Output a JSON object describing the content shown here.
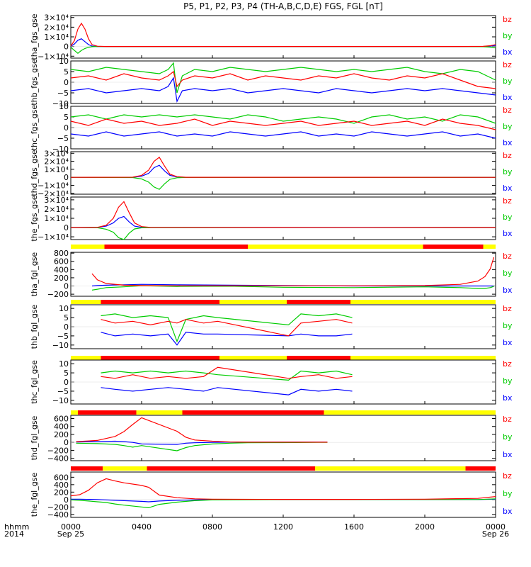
{
  "title": "P5, P1, P2, P3, P4 (TH-A,B,C,D,E) FGS, FGL [nT]",
  "x_axis": {
    "left_label_1": "hhmm",
    "left_label_2": "2014",
    "tick_labels": [
      "0000",
      "0400",
      "0800",
      "1200",
      "1600",
      "2000",
      "0000"
    ],
    "date_labels": [
      "Sep 25",
      "Sep 26"
    ],
    "range_hours": [
      0,
      24
    ]
  },
  "colors": {
    "bz": "#ff0000",
    "by": "#00cc00",
    "bx": "#0000ff",
    "flag_on": "#ff0000",
    "flag_off": "#ffff00"
  },
  "chart_data": [
    {
      "type": "line",
      "ylabel": "tha_fgs_gse",
      "ytick_labels": [
        "3×10⁴",
        "2×10⁴",
        "1×10⁴",
        "0",
        "−1×10⁴"
      ],
      "ytick_values": [
        30000,
        20000,
        10000,
        0,
        -10000
      ],
      "ylim": [
        -12000,
        32000
      ],
      "grid": false,
      "legend_position": "right",
      "x": [
        0,
        0.2,
        0.4,
        0.6,
        0.8,
        1.0,
        1.2,
        1.5,
        2.0,
        3.0,
        6.0,
        12.0,
        18.0,
        22.0,
        23.3,
        23.7,
        24.0
      ],
      "series": [
        {
          "name": "bz",
          "values": [
            500,
            6000,
            18000,
            24000,
            18000,
            8000,
            2000,
            300,
            0,
            0,
            0,
            0,
            0,
            0,
            200,
            800,
            2000
          ]
        },
        {
          "name": "by",
          "values": [
            -800,
            -4000,
            -7000,
            -4000,
            -2000,
            -800,
            -200,
            0,
            0,
            0,
            0,
            0,
            0,
            0,
            -200,
            -600,
            -1500
          ]
        },
        {
          "name": "bx",
          "values": [
            300,
            2500,
            6500,
            8000,
            5000,
            2000,
            500,
            0,
            0,
            0,
            0,
            0,
            0,
            0,
            100,
            400,
            1200
          ]
        }
      ]
    },
    {
      "type": "line",
      "ylabel": "thb_fgs_gse",
      "ytick_labels": [
        "10",
        "5",
        "0",
        "−5",
        "−10"
      ],
      "ytick_values": [
        10,
        5,
        0,
        -5,
        -10
      ],
      "ylim": [
        -10,
        10
      ],
      "grid": false,
      "legend_position": "right",
      "x": [
        0,
        1,
        2,
        3,
        4,
        5,
        5.5,
        5.8,
        6,
        6.3,
        7,
        8,
        9,
        10,
        11,
        12,
        13,
        14,
        15,
        16,
        17,
        18,
        19,
        20,
        21,
        22,
        23,
        24
      ],
      "series": [
        {
          "name": "bz",
          "values": [
            2,
            3,
            1,
            4,
            2,
            1,
            3,
            5,
            -2,
            1,
            3,
            2,
            4,
            1,
            3,
            2,
            1,
            3,
            2,
            4,
            2,
            1,
            3,
            2,
            4,
            1,
            -2,
            -3
          ]
        },
        {
          "name": "by",
          "values": [
            6,
            5,
            7,
            6,
            5,
            4,
            6,
            9,
            -5,
            3,
            6,
            5,
            7,
            6,
            5,
            6,
            7,
            6,
            5,
            6,
            5,
            6,
            7,
            5,
            4,
            6,
            5,
            1
          ]
        },
        {
          "name": "bx",
          "values": [
            -4,
            -3,
            -5,
            -4,
            -3,
            -4,
            -2,
            2,
            -9,
            -4,
            -3,
            -4,
            -3,
            -5,
            -4,
            -3,
            -4,
            -5,
            -3,
            -4,
            -5,
            -4,
            -3,
            -4,
            -3,
            -4,
            -5,
            -6
          ]
        }
      ]
    },
    {
      "type": "line",
      "ylabel": "thc_fgs_gse",
      "ytick_labels": [
        "10",
        "5",
        "0",
        "−5",
        "−10"
      ],
      "ytick_values": [
        10,
        5,
        0,
        -5,
        -10
      ],
      "ylim": [
        -10,
        10
      ],
      "grid": false,
      "legend_position": "right",
      "x": [
        0,
        1,
        2,
        3,
        4,
        5,
        6,
        7,
        8,
        9,
        10,
        11,
        12,
        13,
        14,
        15,
        16,
        17,
        18,
        19,
        20,
        21,
        22,
        23,
        24
      ],
      "series": [
        {
          "name": "bz",
          "values": [
            3,
            1,
            4,
            2,
            3,
            1,
            2,
            4,
            1,
            3,
            2,
            1,
            2,
            3,
            1,
            2,
            3,
            1,
            2,
            3,
            1,
            4,
            2,
            1,
            -1
          ]
        },
        {
          "name": "by",
          "values": [
            5,
            6,
            4,
            6,
            5,
            6,
            5,
            6,
            5,
            4,
            6,
            5,
            3,
            4,
            5,
            4,
            2,
            5,
            6,
            4,
            5,
            3,
            6,
            5,
            2
          ]
        },
        {
          "name": "bx",
          "values": [
            -3,
            -4,
            -2,
            -4,
            -3,
            -2,
            -4,
            -3,
            -4,
            -2,
            -3,
            -4,
            -3,
            -2,
            -4,
            -3,
            -4,
            -2,
            -3,
            -4,
            -3,
            -2,
            -4,
            -3,
            -5
          ]
        }
      ]
    },
    {
      "type": "line",
      "ylabel": "thd_fgs_gse",
      "ytick_labels": [
        "3×10⁴",
        "2×10⁴",
        "1×10⁴",
        "0",
        "−1×10⁴",
        "−2×10⁴"
      ],
      "ytick_values": [
        30000,
        20000,
        10000,
        0,
        -10000,
        -20000
      ],
      "ylim": [
        -21000,
        32000
      ],
      "grid": false,
      "legend_position": "right",
      "x": [
        0,
        3.5,
        4.0,
        4.4,
        4.7,
        5.0,
        5.3,
        5.6,
        6.0,
        6.5,
        24.0
      ],
      "series": [
        {
          "name": "bz",
          "values": [
            0,
            200,
            2500,
            9000,
            20000,
            25000,
            14000,
            4000,
            800,
            100,
            0
          ]
        },
        {
          "name": "by",
          "values": [
            0,
            -200,
            -2000,
            -6000,
            -12000,
            -15000,
            -8000,
            -2500,
            -500,
            -50,
            0
          ]
        },
        {
          "name": "bx",
          "values": [
            0,
            150,
            1500,
            5000,
            12000,
            15000,
            8000,
            2500,
            500,
            50,
            0
          ]
        }
      ]
    },
    {
      "type": "line",
      "ylabel": "the_fgs_gse",
      "ytick_labels": [
        "3×10⁴",
        "2×10⁴",
        "1×10⁴",
        "0",
        "−1×10⁴"
      ],
      "ytick_values": [
        30000,
        20000,
        10000,
        0,
        -10000
      ],
      "ylim": [
        -13000,
        33000
      ],
      "grid": false,
      "legend_position": "right",
      "x": [
        0,
        1.5,
        2.0,
        2.4,
        2.7,
        3.0,
        3.3,
        3.6,
        4.0,
        4.5,
        24.0
      ],
      "series": [
        {
          "name": "bz",
          "values": [
            0,
            200,
            2500,
            10000,
            22000,
            28000,
            16000,
            5000,
            1000,
            150,
            0
          ]
        },
        {
          "name": "by",
          "values": [
            0,
            -200,
            -1800,
            -5000,
            -11000,
            -13000,
            -6000,
            -1500,
            -300,
            -50,
            0
          ]
        },
        {
          "name": "bx",
          "values": [
            0,
            150,
            1500,
            5000,
            10000,
            12000,
            6000,
            1500,
            300,
            50,
            0
          ]
        }
      ]
    },
    {
      "type": "line",
      "ylabel": "tha_fgl_gse",
      "ytick_labels": [
        "800",
        "600",
        "400",
        "200",
        "0",
        "−200"
      ],
      "ytick_values": [
        800,
        600,
        400,
        200,
        0,
        -200
      ],
      "ylim": [
        -250,
        820
      ],
      "grid": false,
      "legend_position": "right",
      "x": [
        1.2,
        1.5,
        2.0,
        3.0,
        4.0,
        6.0,
        9.0,
        12.0,
        16.0,
        20.0,
        22.0,
        23.0,
        23.4,
        23.7,
        23.9
      ],
      "series": [
        {
          "name": "bz",
          "values": [
            300,
            150,
            60,
            20,
            10,
            5,
            5,
            5,
            5,
            10,
            40,
            120,
            230,
            420,
            700
          ]
        },
        {
          "name": "by",
          "values": [
            -100,
            -80,
            -40,
            -20,
            5,
            -10,
            -5,
            -30,
            -40,
            -20,
            -40,
            -60,
            -60,
            -40,
            -10
          ]
        },
        {
          "name": "bx",
          "values": [
            0,
            10,
            20,
            30,
            40,
            30,
            20,
            10,
            0,
            0,
            0,
            0,
            0,
            0,
            0
          ]
        }
      ]
    },
    {
      "type": "line",
      "ylabel": "thb_fgl_gse",
      "ytick_labels": [
        "10",
        "5",
        "0",
        "−5",
        "−10"
      ],
      "ytick_values": [
        10,
        5,
        0,
        -5,
        -10
      ],
      "ylim": [
        -12,
        12
      ],
      "grid": false,
      "legend_position": "right",
      "x": [
        1.7,
        2.5,
        3.5,
        4.5,
        5.5,
        6.0,
        6.5,
        7.5,
        8.3,
        12.3,
        13.0,
        14.0,
        15.0,
        15.9
      ],
      "series": [
        {
          "name": "bz",
          "values": [
            4,
            2,
            3,
            1,
            3,
            2,
            4,
            2,
            3,
            -5,
            2,
            3,
            4,
            2
          ]
        },
        {
          "name": "by",
          "values": [
            6,
            7,
            5,
            6,
            5,
            -8,
            4,
            6,
            5,
            1,
            7,
            6,
            7,
            5
          ]
        },
        {
          "name": "bx",
          "values": [
            -3,
            -5,
            -4,
            -5,
            -4,
            -10,
            -3,
            -4,
            -4,
            -5,
            -4,
            -5,
            -5,
            -4
          ]
        }
      ]
    },
    {
      "type": "line",
      "ylabel": "thc_fgl_gse",
      "ytick_labels": [
        "10",
        "5",
        "0",
        "−5",
        "−10"
      ],
      "ytick_values": [
        10,
        5,
        0,
        -5,
        -10
      ],
      "ylim": [
        -12,
        12
      ],
      "grid": false,
      "legend_position": "right",
      "x": [
        1.7,
        2.5,
        3.5,
        4.5,
        5.5,
        6.5,
        7.5,
        8.3,
        12.3,
        13.0,
        14.0,
        15.0,
        15.9
      ],
      "series": [
        {
          "name": "bz",
          "values": [
            3,
            2,
            4,
            2,
            3,
            2,
            3,
            8,
            2,
            3,
            4,
            2,
            3
          ]
        },
        {
          "name": "by",
          "values": [
            5,
            6,
            5,
            6,
            5,
            6,
            5,
            4,
            1,
            6,
            5,
            6,
            4
          ]
        },
        {
          "name": "bx",
          "values": [
            -3,
            -4,
            -5,
            -4,
            -3,
            -4,
            -5,
            -3,
            -7,
            -4,
            -5,
            -4,
            -5
          ]
        }
      ]
    },
    {
      "type": "line",
      "ylabel": "thd_fgl_gse",
      "ytick_labels": [
        "600",
        "400",
        "200",
        "0",
        "−200",
        "−400"
      ],
      "ytick_values": [
        600,
        400,
        200,
        0,
        -200,
        -400
      ],
      "ylim": [
        -460,
        680
      ],
      "grid": false,
      "legend_position": "right",
      "x": [
        0.3,
        1.5,
        2.5,
        3.0,
        3.5,
        4.0,
        6.0,
        6.5,
        7.0,
        8.0,
        9.0,
        10.0,
        12.0,
        14.0,
        14.5
      ],
      "series": [
        {
          "name": "bz",
          "values": [
            20,
            50,
            150,
            270,
            450,
            620,
            280,
            130,
            60,
            30,
            10,
            5,
            5,
            5,
            5
          ]
        },
        {
          "name": "by",
          "values": [
            -20,
            -30,
            -50,
            -80,
            -120,
            -80,
            -210,
            -130,
            -80,
            -40,
            -20,
            -10,
            -5,
            0,
            0
          ]
        },
        {
          "name": "bx",
          "values": [
            10,
            20,
            30,
            20,
            0,
            -40,
            -50,
            -20,
            -10,
            0,
            5,
            5,
            5,
            5,
            5
          ]
        }
      ]
    },
    {
      "type": "line",
      "ylabel": "the_fgl_gse",
      "ytick_labels": [
        "600",
        "400",
        "200",
        "0",
        "−200",
        "−400"
      ],
      "ytick_values": [
        600,
        400,
        200,
        0,
        -200,
        -400
      ],
      "ylim": [
        -480,
        740
      ],
      "grid": false,
      "legend_position": "right",
      "x": [
        0.0,
        0.5,
        1.0,
        1.5,
        2.0,
        2.5,
        3.0,
        4.0,
        4.4,
        5.0,
        6.0,
        7.0,
        8.0,
        12.0,
        16.0,
        20.0,
        23.0,
        24.0
      ],
      "series": [
        {
          "name": "bz",
          "values": [
            100,
            130,
            250,
            450,
            560,
            500,
            450,
            380,
            330,
            120,
            50,
            20,
            10,
            5,
            5,
            10,
            30,
            80
          ]
        },
        {
          "name": "by",
          "values": [
            -10,
            -20,
            -40,
            -60,
            -80,
            -120,
            -150,
            -200,
            -220,
            -130,
            -70,
            -30,
            -10,
            0,
            0,
            0,
            0,
            20
          ]
        },
        {
          "name": "bx",
          "values": [
            10,
            10,
            5,
            0,
            -10,
            -20,
            -30,
            -50,
            -60,
            -40,
            -20,
            -10,
            0,
            0,
            0,
            0,
            0,
            10
          ]
        }
      ]
    }
  ],
  "flag_bars": [
    {
      "above_panel": 5,
      "segments": [
        [
          0,
          1.9,
          "off"
        ],
        [
          1.9,
          10.0,
          "on"
        ],
        [
          10.0,
          19.9,
          "off"
        ],
        [
          19.9,
          23.3,
          "on"
        ],
        [
          23.3,
          24,
          "off"
        ]
      ]
    },
    {
      "above_panel": 6,
      "segments": [
        [
          0,
          1.7,
          "off"
        ],
        [
          1.7,
          8.4,
          "on"
        ],
        [
          8.4,
          12.2,
          "off"
        ],
        [
          12.2,
          15.8,
          "on"
        ],
        [
          15.8,
          24,
          "off"
        ]
      ]
    },
    {
      "above_panel": 7,
      "segments": [
        [
          0,
          1.7,
          "off"
        ],
        [
          1.7,
          8.4,
          "on"
        ],
        [
          8.4,
          12.2,
          "off"
        ],
        [
          12.2,
          15.8,
          "on"
        ],
        [
          15.8,
          24,
          "off"
        ]
      ]
    },
    {
      "above_panel": 8,
      "segments": [
        [
          0,
          0.4,
          "off"
        ],
        [
          0.4,
          3.7,
          "on"
        ],
        [
          3.7,
          6.3,
          "off"
        ],
        [
          6.3,
          14.3,
          "on"
        ],
        [
          14.3,
          24,
          "off"
        ]
      ]
    },
    {
      "above_panel": 9,
      "segments": [
        [
          0,
          1.8,
          "on"
        ],
        [
          1.8,
          4.3,
          "off"
        ],
        [
          4.3,
          13.8,
          "on"
        ],
        [
          13.8,
          22.3,
          "off"
        ],
        [
          22.3,
          24,
          "on"
        ]
      ]
    }
  ],
  "legend_order": [
    "bz",
    "by",
    "bx"
  ]
}
